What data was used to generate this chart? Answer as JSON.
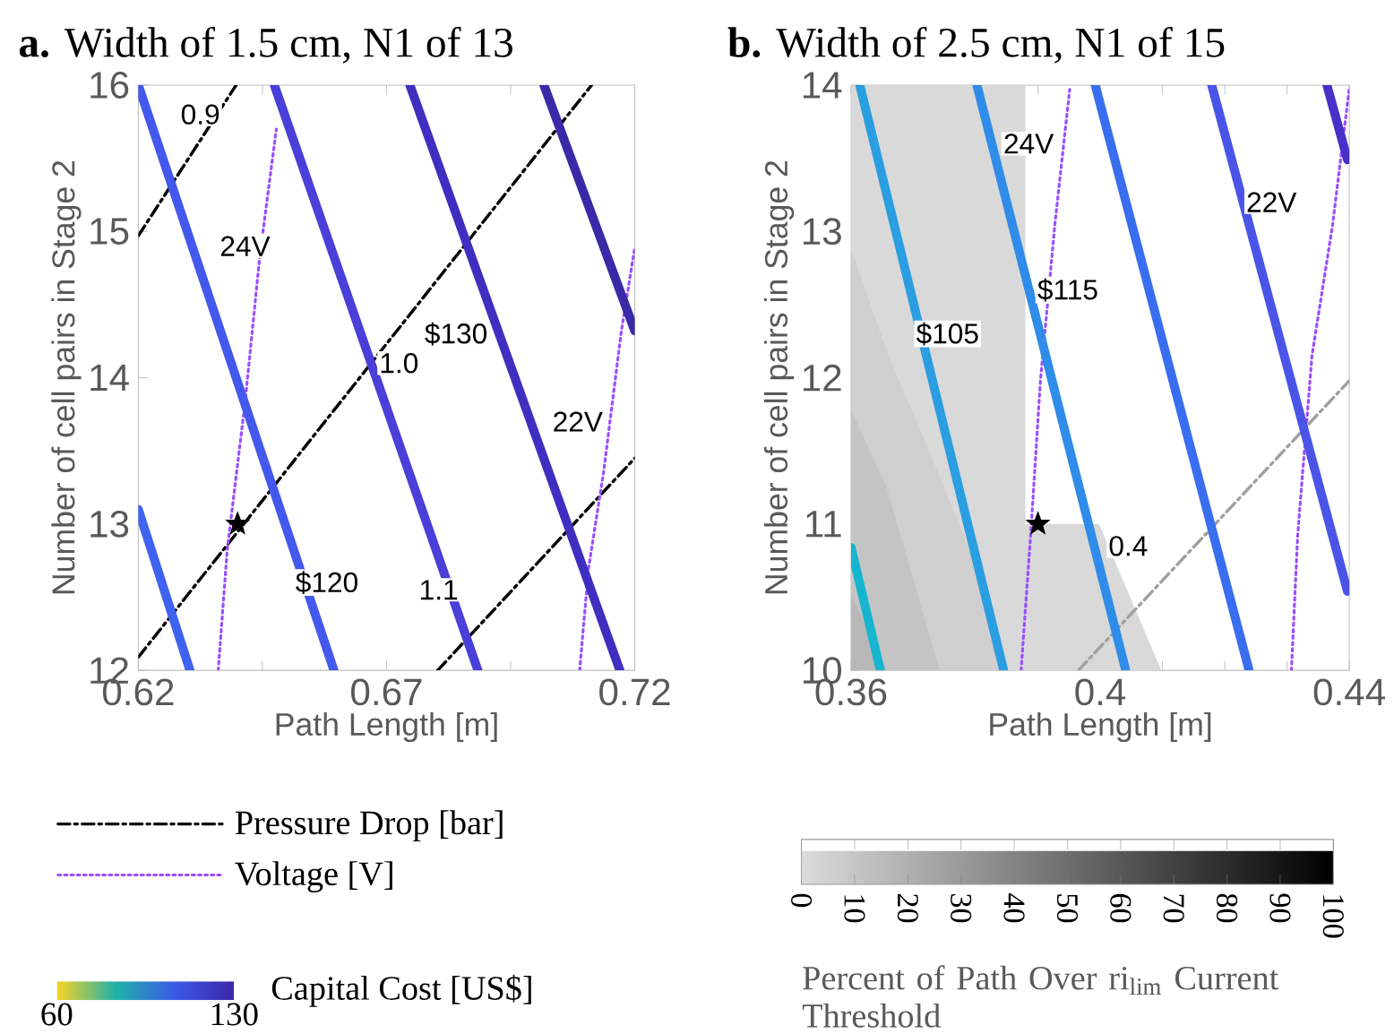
{
  "chart_data": [
    {
      "type": "line",
      "title": "**a.** Width of 1.5 cm, N1 of 13",
      "xlabel": "Path Length [m]",
      "ylabel": "Number of cell pairs in Stage 2",
      "xlim": [
        0.62,
        0.72
      ],
      "ylim": [
        12,
        16
      ],
      "xticks": [
        0.62,
        {
          "value": 0.645,
          "label": null
        },
        0.67,
        {
          "value": 0.695,
          "label": null
        },
        0.72
      ],
      "yticks": [
        12,
        13,
        14,
        15,
        16
      ],
      "legend": "bottom",
      "clabel": "Capital Cost [US$]",
      "clim": [
        60,
        130
      ],
      "cticks": [
        60,
        130
      ],
      "series": [
        {
          "name": "Pressure Drop [bar]",
          "color": "#000000",
          "line_style": "dashed",
          "x": [
            0.62,
            0.6397
          ],
          "values": [
            14.97,
            16
          ]
        },
        {
          "color": "#000000",
          "line_style": "dashed",
          "x": [
            0.62,
            0.7113
          ],
          "values": [
            12.09,
            16
          ]
        },
        {
          "color": "#000000",
          "line_style": "dashed",
          "x": [
            0.6803,
            0.72
          ],
          "values": [
            12,
            13.45
          ]
        },
        {
          "name": "Voltage [V]",
          "color": "#9b4dff",
          "line_style": "dotted",
          "x": [
            0.6361,
            0.6379,
            0.6415,
            0.6445,
            0.6478
          ],
          "values": [
            12,
            12.82,
            13.83,
            14.84,
            15.7
          ]
        },
        {
          "color": "#9b4dff",
          "line_style": "dotted",
          "x": [
            0.7089,
            0.7107,
            0.7137,
            0.7173,
            0.72
          ],
          "values": [
            12,
            12.7,
            13.35,
            14.32,
            14.89
          ]
        },
        {
          "color": "#3f62f0",
          "x": [
            0.62,
            0.6304
          ],
          "values": [
            13.1,
            12
          ]
        },
        {
          "color": "#4358ec",
          "x": [
            0.62,
            0.6594
          ],
          "values": [
            16,
            12
          ]
        },
        {
          "color": "#4a3fd8",
          "x": [
            0.6474,
            0.6884
          ],
          "values": [
            16,
            12
          ]
        },
        {
          "color": "#3f2fc0",
          "x": [
            0.6747,
            0.717
          ],
          "values": [
            16,
            12
          ]
        },
        {
          "color": "#3a2aa8",
          "x": [
            0.7017,
            0.72
          ],
          "values": [
            16,
            14.32
          ]
        },
        {
          "type": "scatter",
          "marker": "star",
          "color": "#000000",
          "x": [
            0.64
          ],
          "values": [
            13
          ]
        }
      ],
      "annotations": [
        {
          "text": "0.9",
          "x": 0.6325,
          "y": 15.8
        },
        {
          "text": "24V",
          "x": 0.6415,
          "y": 14.9
        },
        {
          "text": "1.0",
          "x": 0.6725,
          "y": 14.1
        },
        {
          "text": "$130",
          "x": 0.684,
          "y": 14.3
        },
        {
          "text": "22V",
          "x": 0.7085,
          "y": 13.7
        },
        {
          "text": "$120",
          "x": 0.658,
          "y": 12.6
        },
        {
          "text": "1.1",
          "x": 0.6805,
          "y": 12.55
        }
      ]
    },
    {
      "type": "line",
      "title": "**b.** Width of 2.5 cm, N1 of 15",
      "xlabel": "Path Length [m]",
      "ylabel": "Number of cell pairs in Stage 2",
      "xlim": [
        0.36,
        0.44
      ],
      "ylim": [
        10,
        14
      ],
      "xticks": [
        0.36,
        {
          "value": 0.37,
          "label": null
        },
        {
          "value": 0.38,
          "label": null
        },
        {
          "value": 0.39,
          "label": null
        },
        0.4,
        {
          "value": 0.41,
          "label": null
        },
        {
          "value": 0.42,
          "label": null
        },
        {
          "value": 0.43,
          "label": null
        },
        0.44
      ],
      "yticks": [
        10,
        11,
        12,
        13,
        14
      ],
      "clabel": "Percent of Path Over ri$_{lim}$ Current Threshold",
      "clim": [
        0,
        100
      ],
      "cticks": [
        0,
        10,
        20,
        30,
        40,
        50,
        60,
        70,
        80,
        90,
        100
      ],
      "series": [
        {
          "type": "area",
          "color": "#d9d9d9",
          "x": [
            0.36,
            0.388,
            0.388,
            0.3998,
            0.4098
          ],
          "values": [
            14,
            14,
            11,
            11,
            10
          ]
        },
        {
          "type": "area",
          "color": "#cfcfcf",
          "x": [
            0.36,
            0.366,
            0.3742,
            0.3818,
            0.3845
          ],
          "values": [
            12.88,
            12.15,
            11.33,
            10.52,
            10
          ]
        },
        {
          "type": "area",
          "color": "#c4c4c4",
          "x": [
            0.36,
            0.3657,
            0.3742
          ],
          "values": [
            11.78,
            11.25,
            10
          ]
        },
        {
          "type": "area",
          "color": "#b8b8b8",
          "x": [
            0.36,
            0.3657
          ],
          "values": [
            10.52,
            10
          ]
        },
        {
          "color": "#a0a0a0",
          "line_style": "dashed",
          "x": [
            0.3965,
            0.44
          ],
          "values": [
            10,
            11.98
          ]
        },
        {
          "color": "#9b4dff",
          "line_style": "dotted",
          "x": [
            0.3873,
            0.3889,
            0.3904,
            0.3927,
            0.3951
          ],
          "values": [
            10,
            10.97,
            11.98,
            13.04,
            13.97
          ]
        },
        {
          "color": "#9b4dff",
          "line_style": "dotted",
          "x": [
            0.4307,
            0.4317,
            0.434,
            0.4373,
            0.44
          ],
          "values": [
            10,
            10.92,
            12.15,
            13.04,
            13.98
          ]
        },
        {
          "color": "#17b5d0",
          "x": [
            0.36,
            0.3647
          ],
          "values": [
            10.84,
            10
          ]
        },
        {
          "color": "#2a9ee0",
          "x": [
            0.3614,
            0.3845
          ],
          "values": [
            14,
            10
          ]
        },
        {
          "color": "#2f8ce8",
          "x": [
            0.3802,
            0.4041
          ],
          "values": [
            14,
            10
          ]
        },
        {
          "color": "#3a6ef0",
          "x": [
            0.3992,
            0.4239
          ],
          "values": [
            14,
            10
          ]
        },
        {
          "color": "#4a55e8",
          "x": [
            0.4179,
            0.4397
          ],
          "values": [
            14,
            10.54
          ]
        },
        {
          "color": "#4a30c8",
          "x": [
            0.4364,
            0.4397
          ],
          "values": [
            14,
            13.49
          ]
        },
        {
          "type": "scatter",
          "marker": "star",
          "color": "#000000",
          "x": [
            0.39
          ],
          "values": [
            11
          ]
        }
      ],
      "annotations": [
        {
          "text": "24V",
          "x": 0.3885,
          "y": 13.6
        },
        {
          "text": "$105",
          "x": 0.3755,
          "y": 12.3
        },
        {
          "text": "$115",
          "x": 0.3948,
          "y": 12.6
        },
        {
          "text": "22V",
          "x": 0.4275,
          "y": 13.2
        },
        {
          "text": "0.4",
          "x": 0.4045,
          "y": 10.85
        }
      ]
    }
  ]
}
